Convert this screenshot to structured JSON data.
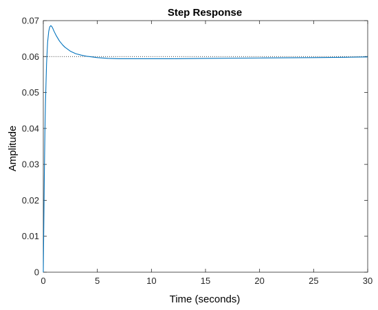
{
  "chart_data": {
    "type": "line",
    "title": "Step Response",
    "xlabel": "Time (seconds)",
    "ylabel": "Amplitude",
    "xlim": [
      0,
      30
    ],
    "ylim": [
      0,
      0.07
    ],
    "xticks": [
      0,
      5,
      10,
      15,
      20,
      25,
      30
    ],
    "yticks": [
      0,
      0.01,
      0.02,
      0.03,
      0.04,
      0.05,
      0.06,
      0.07
    ],
    "xtick_labels": [
      "0",
      "5",
      "10",
      "15",
      "20",
      "25",
      "30"
    ],
    "ytick_labels": [
      "0",
      "0.01",
      "0.02",
      "0.03",
      "0.04",
      "0.05",
      "0.06",
      "0.07"
    ],
    "grid": false,
    "series": [
      {
        "color": "#0072BD",
        "x": [
          0,
          0.05,
          0.1,
          0.15,
          0.2,
          0.3,
          0.4,
          0.5,
          0.6,
          0.7,
          0.8,
          0.9,
          1.0,
          1.2,
          1.5,
          1.8,
          2.0,
          2.5,
          3.0,
          3.5,
          4.0,
          4.5,
          5.0,
          6.0,
          7.0,
          8.0,
          10.0,
          12.0,
          15.0,
          20.0,
          25.0,
          28.0,
          30.0
        ],
        "y": [
          0,
          0.014,
          0.028,
          0.039,
          0.047,
          0.058,
          0.064,
          0.067,
          0.0683,
          0.0686,
          0.0683,
          0.0677,
          0.067,
          0.0658,
          0.0643,
          0.0632,
          0.0626,
          0.0615,
          0.0608,
          0.0604,
          0.0601,
          0.0599,
          0.0597,
          0.0595,
          0.0594,
          0.0594,
          0.0594,
          0.0594,
          0.0595,
          0.0596,
          0.0597,
          0.0598,
          0.0599
        ]
      }
    ],
    "reference_line": {
      "y": 0.06,
      "style": "dotted",
      "color": "#000000"
    }
  }
}
